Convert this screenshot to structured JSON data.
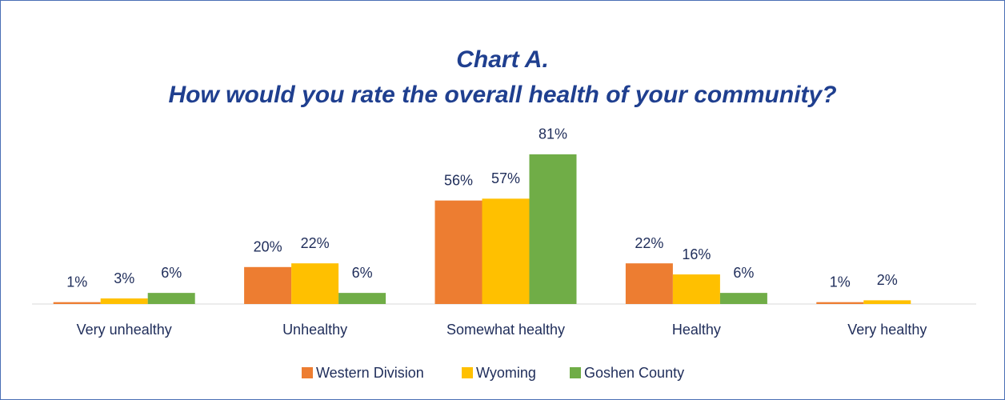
{
  "chart_data": {
    "type": "bar",
    "title": "Chart A.",
    "subtitle": "How would you rate the overall health of your community?",
    "categories": [
      "Very unhealthy",
      "Unhealthy",
      "Somewhat healthy",
      "Healthy",
      "Very healthy"
    ],
    "series": [
      {
        "name": "Western Division",
        "color": "#ed7d31",
        "values": [
          1,
          20,
          56,
          22,
          1
        ],
        "value_labels": [
          "1%",
          "20%",
          "56%",
          "22%",
          "1%"
        ]
      },
      {
        "name": "Wyoming",
        "color": "#ffc000",
        "values": [
          3,
          22,
          57,
          16,
          2
        ],
        "value_labels": [
          "3%",
          "22%",
          "57%",
          "16%",
          "2%"
        ]
      },
      {
        "name": "Goshen County",
        "color": "#70ad47",
        "values": [
          6,
          6,
          81,
          6,
          null
        ],
        "value_labels": [
          "6%",
          "6%",
          "81%",
          "6%",
          null
        ]
      }
    ],
    "ylim": [
      0,
      100
    ],
    "legend": "bottom"
  }
}
